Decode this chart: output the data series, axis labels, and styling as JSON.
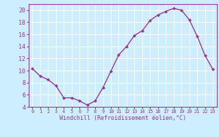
{
  "x": [
    0,
    1,
    2,
    3,
    4,
    5,
    6,
    7,
    8,
    9,
    10,
    11,
    12,
    13,
    14,
    15,
    16,
    17,
    18,
    19,
    20,
    21,
    22,
    23
  ],
  "y": [
    10.3,
    9.1,
    8.5,
    7.5,
    5.5,
    5.5,
    5.0,
    4.3,
    5.0,
    7.2,
    9.9,
    12.6,
    14.0,
    15.8,
    16.6,
    18.3,
    19.2,
    19.8,
    20.3,
    20.0,
    18.4,
    15.7,
    12.5,
    10.2
  ],
  "line_color": "#993399",
  "marker": "D",
  "marker_size": 2,
  "line_width": 1.0,
  "bg_color": "#cceeff",
  "grid_color": "#ffffff",
  "xlabel": "Windchill (Refroidissement éolien,°C)",
  "xlabel_color": "#993399",
  "tick_color": "#993399",
  "axis_color": "#993399",
  "ylim": [
    4,
    21
  ],
  "xlim": [
    -0.5,
    23.5
  ],
  "yticks": [
    4,
    6,
    8,
    10,
    12,
    14,
    16,
    18,
    20
  ],
  "xticks": [
    0,
    1,
    2,
    3,
    4,
    5,
    6,
    7,
    8,
    9,
    10,
    11,
    12,
    13,
    14,
    15,
    16,
    17,
    18,
    19,
    20,
    21,
    22,
    23
  ],
  "xtick_fontsize": 5.0,
  "ytick_fontsize": 6.0,
  "xlabel_fontsize": 6.0
}
